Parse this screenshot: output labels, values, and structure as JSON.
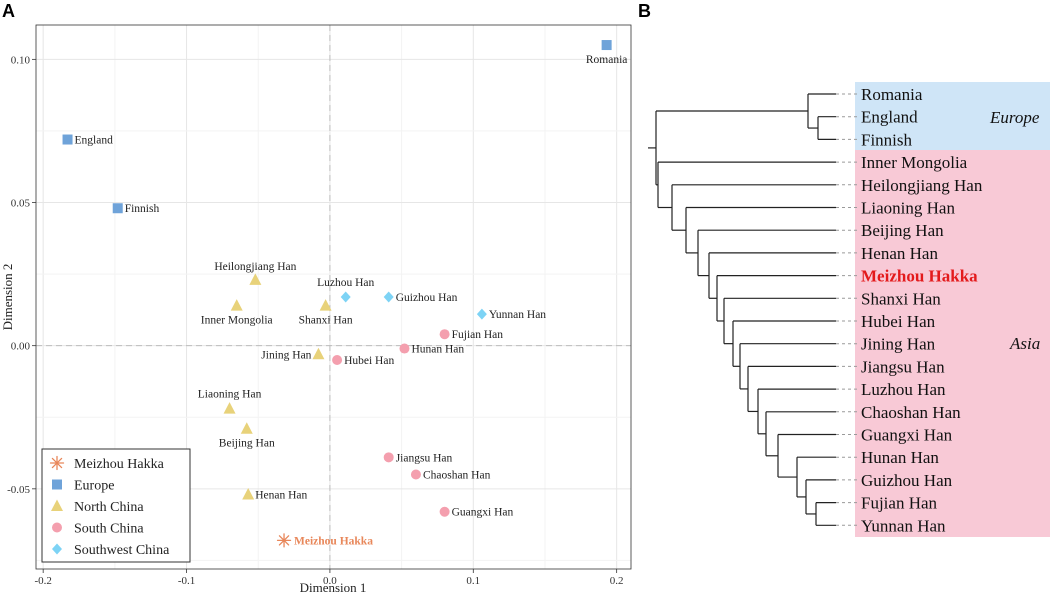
{
  "panels": {
    "a_label": "A",
    "b_label": "B"
  },
  "colors": {
    "europe": "#6fa3d9",
    "north_china": "#e8d27a",
    "south_china": "#f49fae",
    "southwest_china": "#7dd3f5",
    "meizhou": "#e8875a",
    "highlight_text": "#e31a1c"
  },
  "chart_data": [
    {
      "type": "scatter",
      "title": "",
      "xlabel": "Dimension 1",
      "ylabel": "Dimension 2",
      "xlim": [
        -0.205,
        0.21
      ],
      "ylim": [
        -0.078,
        0.112
      ],
      "xticks": [
        -0.2,
        -0.1,
        0.0,
        0.1,
        0.2
      ],
      "xtick_labels": [
        "-0.2",
        "-0.1",
        "0.0",
        "0.1",
        "0.2"
      ],
      "yticks": [
        -0.05,
        0.0,
        0.05,
        0.1
      ],
      "ytick_labels": [
        "-0.05",
        "0.00",
        "0.05",
        "0.10"
      ],
      "grid": true,
      "legend_position": "bottom-left",
      "legend": [
        {
          "name": "Meizhou Hakka",
          "symbol": "asterisk",
          "color_key": "meizhou"
        },
        {
          "name": "Europe",
          "symbol": "square",
          "color_key": "europe"
        },
        {
          "name": "North China",
          "symbol": "triangle",
          "color_key": "north_china"
        },
        {
          "name": "South China",
          "symbol": "circle",
          "color_key": "south_china"
        },
        {
          "name": "Southwest China",
          "symbol": "diamond",
          "color_key": "southwest_china"
        }
      ],
      "points": [
        {
          "name": "Romania",
          "x": 0.193,
          "y": 0.105,
          "group": "Europe",
          "anchor": "below"
        },
        {
          "name": "England",
          "x": -0.183,
          "y": 0.072,
          "group": "Europe",
          "anchor": "right"
        },
        {
          "name": "Finnish",
          "x": -0.148,
          "y": 0.048,
          "group": "Europe",
          "anchor": "right"
        },
        {
          "name": "Heilongjiang Han",
          "x": -0.052,
          "y": 0.023,
          "group": "North China",
          "anchor": "above-left"
        },
        {
          "name": "Inner Mongolia",
          "x": -0.065,
          "y": 0.014,
          "group": "North China",
          "anchor": "below"
        },
        {
          "name": "Shanxi Han",
          "x": -0.003,
          "y": 0.014,
          "group": "North China",
          "anchor": "below"
        },
        {
          "name": "Jining Han",
          "x": -0.008,
          "y": -0.003,
          "group": "North China",
          "anchor": "left"
        },
        {
          "name": "Liaoning Han",
          "x": -0.07,
          "y": -0.022,
          "group": "North China",
          "anchor": "above"
        },
        {
          "name": "Beijing Han",
          "x": -0.058,
          "y": -0.029,
          "group": "North China",
          "anchor": "below"
        },
        {
          "name": "Henan Han",
          "x": -0.057,
          "y": -0.052,
          "group": "North China",
          "anchor": "right"
        },
        {
          "name": "Luzhou Han",
          "x": 0.011,
          "y": 0.017,
          "group": "Southwest China",
          "anchor": "above"
        },
        {
          "name": "Guizhou Han",
          "x": 0.041,
          "y": 0.017,
          "group": "Southwest China",
          "anchor": "right"
        },
        {
          "name": "Yunnan Han",
          "x": 0.106,
          "y": 0.011,
          "group": "Southwest China",
          "anchor": "right"
        },
        {
          "name": "Fujian Han",
          "x": 0.08,
          "y": 0.004,
          "group": "South China",
          "anchor": "right"
        },
        {
          "name": "Hunan Han",
          "x": 0.052,
          "y": -0.001,
          "group": "South China",
          "anchor": "right"
        },
        {
          "name": "Hubei Han",
          "x": 0.005,
          "y": -0.005,
          "group": "South China",
          "anchor": "right"
        },
        {
          "name": "Jiangsu Han",
          "x": 0.041,
          "y": -0.039,
          "group": "South China",
          "anchor": "right"
        },
        {
          "name": "Chaoshan Han",
          "x": 0.06,
          "y": -0.045,
          "group": "South China",
          "anchor": "right"
        },
        {
          "name": "Guangxi Han",
          "x": 0.08,
          "y": -0.058,
          "group": "South China",
          "anchor": "right"
        },
        {
          "name": "Meizhou Hakka",
          "x": -0.032,
          "y": -0.068,
          "group": "Meizhou Hakka",
          "anchor": "right"
        }
      ]
    },
    {
      "type": "dendrogram",
      "title": "",
      "leaves": [
        "Romania",
        "England",
        "Finnish",
        "Inner Mongolia",
        "Heilongjiang Han",
        "Liaoning Han",
        "Beijing Han",
        "Henan Han",
        "Meizhou Hakka",
        "Shanxi Han",
        "Hubei Han",
        "Jining Han",
        "Jiangsu Han",
        "Luzhou Han",
        "Chaoshan Han",
        "Guangxi Han",
        "Hunan Han",
        "Guizhou Han",
        "Fujian Han",
        "Yunnan Han"
      ],
      "highlight_leaf": "Meizhou Hakka",
      "groups": [
        {
          "label": "Europe",
          "from": 0,
          "to": 2,
          "color": "#cfe5f7"
        },
        {
          "label": "Asia",
          "from": 3,
          "to": 19,
          "color": "#f8c9d6"
        }
      ]
    }
  ]
}
